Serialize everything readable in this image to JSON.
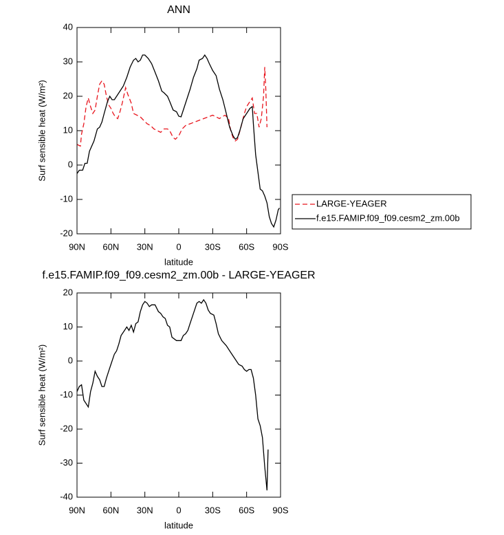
{
  "chart_data": [
    {
      "type": "line",
      "title": "ANN",
      "xlabel": "latitude",
      "ylabel": "Surf sensible heat (W/m²)",
      "xlim": [
        90,
        -90
      ],
      "ylim": [
        -20,
        40
      ],
      "xticks": [
        {
          "value": 90,
          "label": "90N"
        },
        {
          "value": 60,
          "label": "60N"
        },
        {
          "value": 30,
          "label": "30N"
        },
        0,
        {
          "value": -30,
          "label": "30S"
        },
        {
          "value": -60,
          "label": "60S"
        },
        {
          "value": -90,
          "label": "90S"
        }
      ],
      "yticks": [
        -20,
        -10,
        0,
        10,
        20,
        30,
        40
      ],
      "legend": "right",
      "series": [
        {
          "name": "LARGE-YEAGER",
          "color": "#e8141c",
          "dash": true,
          "x": [
            90,
            87,
            86,
            84,
            82,
            80,
            78,
            76,
            74,
            72,
            70,
            68,
            66,
            64,
            62,
            60,
            58,
            56,
            54,
            52,
            50,
            47,
            45,
            42,
            40,
            37,
            34,
            31,
            28,
            25,
            22,
            19,
            16,
            13,
            10,
            8,
            5,
            3,
            0,
            -3,
            -6,
            -10,
            -14,
            -18,
            -22,
            -26,
            -30,
            -33,
            -36,
            -38,
            -41,
            -44,
            -46,
            -48,
            -50,
            -52,
            -55,
            -58,
            -60,
            -63,
            -65,
            -67,
            -69,
            -71,
            -73,
            -75,
            -76,
            -77,
            -78
          ],
          "values": [
            6,
            5.5,
            9,
            12,
            17,
            19.5,
            17,
            15,
            16,
            20,
            23.5,
            24.5,
            23.5,
            20,
            17.5,
            16.5,
            15,
            14,
            13.5,
            15.5,
            18,
            22.5,
            20.5,
            18,
            15,
            14.5,
            14,
            13,
            12,
            11.5,
            10.5,
            10,
            9.5,
            10.5,
            10.5,
            10,
            8,
            7.5,
            8.5,
            10.5,
            11.5,
            12,
            12.5,
            13,
            13.5,
            14,
            14.5,
            14,
            13.5,
            14,
            14.5,
            13.5,
            10,
            8,
            7,
            7.5,
            11,
            15,
            17,
            18.5,
            19.5,
            15,
            15,
            11,
            13.5,
            20,
            28.5,
            22,
            11
          ]
        },
        {
          "name": "f.e15.FAMIP.f09_f09.cesm2_zm.00b",
          "color": "#000000",
          "dash": false,
          "x": [
            90,
            88,
            85,
            83,
            81,
            79,
            75,
            72,
            70,
            68,
            66,
            63,
            61,
            59,
            57,
            55,
            52,
            49,
            46,
            43,
            40,
            38,
            36,
            34,
            32,
            30,
            27,
            24,
            21,
            18,
            15,
            13,
            10,
            8,
            5,
            2,
            0,
            -2,
            -4,
            -7,
            -10,
            -13,
            -16,
            -18,
            -21,
            -23,
            -25,
            -27,
            -30,
            -33,
            -36,
            -39,
            -42,
            -45,
            -48,
            -50,
            -52,
            -54,
            -57,
            -60,
            -63,
            -65,
            -66,
            -68,
            -70,
            -72,
            -74,
            -76,
            -78,
            -80,
            -82,
            -84,
            -86,
            -88,
            -89
          ],
          "values": [
            -2.5,
            -1.5,
            -1.5,
            0.5,
            0.5,
            4,
            7,
            10.5,
            11,
            12.5,
            15,
            18.5,
            20,
            19,
            19,
            20,
            21.5,
            23,
            25.5,
            28.5,
            30.5,
            31,
            30,
            30.5,
            32,
            32,
            31,
            29.5,
            27,
            24.5,
            21.5,
            21,
            20,
            18.5,
            16,
            15.5,
            14.2,
            14,
            16,
            19,
            22,
            25.5,
            28,
            30.5,
            31,
            32,
            31,
            29.5,
            27.5,
            26,
            22,
            19,
            15,
            11,
            8.5,
            7.5,
            8,
            10,
            13.5,
            15,
            16.5,
            17,
            12,
            3,
            -2,
            -7,
            -7.5,
            -9,
            -11,
            -15,
            -17,
            -18,
            -16,
            -13,
            -12.5
          ]
        }
      ]
    },
    {
      "type": "line",
      "title": "f.e15.FAMIP.f09_f09.cesm2_zm.00b - LARGE-YEAGER",
      "xlabel": "latitude",
      "ylabel": "Surf sensible heat (W/m²)",
      "xlim": [
        90,
        -90
      ],
      "ylim": [
        -40,
        20
      ],
      "xticks": [
        {
          "value": 90,
          "label": "90N"
        },
        {
          "value": 60,
          "label": "60N"
        },
        {
          "value": 30,
          "label": "30N"
        },
        0,
        {
          "value": -30,
          "label": "30S"
        },
        {
          "value": -60,
          "label": "60S"
        },
        {
          "value": -90,
          "label": "90S"
        }
      ],
      "yticks": [
        -40,
        -30,
        -20,
        -10,
        0,
        10,
        20
      ],
      "series": [
        {
          "color": "#000000",
          "dash": false,
          "x": [
            90,
            88,
            86,
            84,
            82,
            80,
            78,
            76,
            74,
            72,
            70,
            68,
            66,
            64,
            62,
            60,
            57,
            55,
            53,
            51,
            48,
            46,
            44,
            42,
            40,
            38,
            36,
            34,
            32,
            30,
            28,
            26,
            24,
            21,
            18,
            16,
            14,
            12,
            10,
            8,
            6,
            4,
            2,
            -2,
            -4,
            -6,
            -8,
            -10,
            -12,
            -14,
            -16,
            -18,
            -20,
            -22,
            -24,
            -26,
            -28,
            -31,
            -33,
            -35,
            -38,
            -42,
            -46,
            -50,
            -53,
            -56,
            -58,
            -60,
            -62,
            -64,
            -66,
            -68,
            -70,
            -72,
            -74,
            -76,
            -78,
            -79
          ],
          "values": [
            -9,
            -7.5,
            -7,
            -11.5,
            -12.5,
            -13.5,
            -9,
            -6.5,
            -3,
            -4.5,
            -5.5,
            -7.5,
            -7.5,
            -5,
            -3,
            -1,
            2,
            3,
            5,
            7.5,
            9,
            10,
            9,
            10.5,
            8.5,
            11,
            11.5,
            14.5,
            16.5,
            17.5,
            17,
            16,
            16.5,
            16.5,
            14.5,
            14,
            13,
            12.5,
            10.5,
            10,
            7,
            6.5,
            6,
            6,
            7.5,
            8,
            9,
            11,
            13,
            15,
            17,
            17.5,
            17,
            18,
            17,
            15,
            14,
            13.5,
            11,
            8,
            6,
            4.5,
            2.5,
            0.5,
            -1,
            -1.5,
            -2.5,
            -3,
            -2.5,
            -2.5,
            -5,
            -10,
            -17,
            -19,
            -22.5,
            -31,
            -38,
            -26
          ]
        }
      ]
    }
  ]
}
